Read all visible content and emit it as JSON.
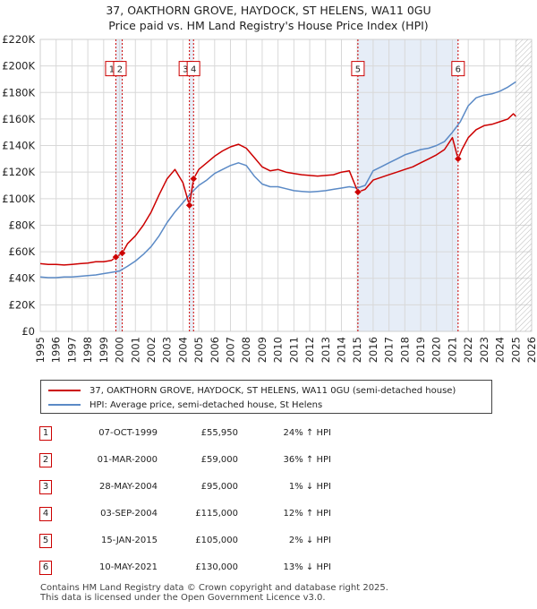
{
  "title": {
    "line1": "37, OAKTHORN GROVE, HAYDOCK, ST HELENS, WA11 0GU",
    "line2": "Price paid vs. HM Land Registry's House Price Index (HPI)"
  },
  "colors": {
    "property": "#cc0000",
    "hpi": "#5b8ac6",
    "band": "#e6edf7",
    "grid": "#d8d8d8"
  },
  "chart_data": {
    "type": "line",
    "title": "37, OAKTHORN GROVE, HAYDOCK, ST HELENS, WA11 0GU",
    "subtitle": "Price paid vs. HM Land Registry's House Price Index (HPI)",
    "xlabel": "",
    "ylabel": "",
    "xlim": [
      1995,
      2026
    ],
    "ylim": [
      0,
      220000
    ],
    "y_ticks": [
      0,
      20000,
      40000,
      60000,
      80000,
      100000,
      120000,
      140000,
      160000,
      180000,
      200000,
      220000
    ],
    "y_tick_labels": [
      "£0",
      "£20K",
      "£40K",
      "£60K",
      "£80K",
      "£100K",
      "£120K",
      "£140K",
      "£160K",
      "£180K",
      "£200K",
      "£220K"
    ],
    "x_ticks": [
      1995,
      1996,
      1997,
      1998,
      1999,
      2000,
      2001,
      2002,
      2003,
      2004,
      2005,
      2006,
      2007,
      2008,
      2009,
      2010,
      2011,
      2012,
      2013,
      2014,
      2015,
      2016,
      2017,
      2018,
      2019,
      2020,
      2021,
      2022,
      2023,
      2024,
      2025,
      2026
    ],
    "x_tick_labels": [
      "1995",
      "1996",
      "1997",
      "1998",
      "1999",
      "2000",
      "2001",
      "2002",
      "2003",
      "2004",
      "2005",
      "2006",
      "2007",
      "2008",
      "2009",
      "2010",
      "2011",
      "2012",
      "2013",
      "2014",
      "2015",
      "2016",
      "2017",
      "2018",
      "2019",
      "2020",
      "2021",
      "2022",
      "2023",
      "2024",
      "2025",
      "2026"
    ],
    "grid": true,
    "legend_position": "below",
    "shaded_ranges": [
      [
        1999.77,
        2000.17
      ],
      [
        2004.41,
        2004.67
      ],
      [
        2015.04,
        2021.36
      ]
    ],
    "hatched_from": 2025.0,
    "series": [
      {
        "name": "37, OAKTHORN GROVE, HAYDOCK, ST HELENS, WA11 0GU (semi-detached house)",
        "x": [
          1995.0,
          1995.5,
          1996.0,
          1996.5,
          1997.0,
          1997.5,
          1998.0,
          1998.5,
          1999.0,
          1999.5,
          1999.77,
          2000.17,
          2000.5,
          2001.0,
          2001.5,
          2002.0,
          2002.5,
          2003.0,
          2003.5,
          2004.0,
          2004.41,
          2004.67,
          2005.0,
          2005.5,
          2006.0,
          2006.5,
          2007.0,
          2007.5,
          2008.0,
          2008.5,
          2009.0,
          2009.5,
          2010.0,
          2010.5,
          2011.0,
          2011.5,
          2012.0,
          2012.5,
          2013.0,
          2013.5,
          2014.0,
          2014.5,
          2015.04,
          2015.5,
          2016.0,
          2016.5,
          2017.0,
          2017.5,
          2018.0,
          2018.5,
          2019.0,
          2019.5,
          2020.0,
          2020.5,
          2021.0,
          2021.36,
          2021.6,
          2022.0,
          2022.5,
          2023.0,
          2023.5,
          2024.0,
          2024.5,
          2024.85,
          2025.0
        ],
        "values": [
          51000,
          50500,
          50500,
          50000,
          50500,
          51000,
          51500,
          52500,
          52500,
          53500,
          55950,
          59000,
          66000,
          72000,
          80000,
          90000,
          103000,
          115000,
          122000,
          112000,
          95000,
          115000,
          122000,
          127000,
          132000,
          136000,
          139000,
          141000,
          138000,
          131000,
          124000,
          121000,
          122000,
          120000,
          119000,
          118000,
          117500,
          117000,
          117500,
          118000,
          120000,
          121000,
          105000,
          107000,
          114000,
          116000,
          118000,
          120000,
          122000,
          124000,
          127000,
          130000,
          133000,
          137000,
          146000,
          130000,
          137000,
          146000,
          152000,
          155000,
          156000,
          158000,
          160000,
          164000,
          162000
        ]
      },
      {
        "name": "HPI: Average price, semi-detached house, St Helens",
        "x": [
          1995.0,
          1995.5,
          1996.0,
          1996.5,
          1997.0,
          1997.5,
          1998.0,
          1998.5,
          1999.0,
          1999.5,
          2000.0,
          2000.5,
          2001.0,
          2001.5,
          2002.0,
          2002.5,
          2003.0,
          2003.5,
          2004.0,
          2004.5,
          2005.0,
          2005.5,
          2006.0,
          2006.5,
          2007.0,
          2007.5,
          2008.0,
          2008.5,
          2009.0,
          2009.5,
          2010.0,
          2010.5,
          2011.0,
          2011.5,
          2012.0,
          2012.5,
          2013.0,
          2013.5,
          2014.0,
          2014.5,
          2015.0,
          2015.5,
          2016.0,
          2016.5,
          2017.0,
          2017.5,
          2018.0,
          2018.5,
          2019.0,
          2019.5,
          2020.0,
          2020.5,
          2021.0,
          2021.5,
          2022.0,
          2022.5,
          2023.0,
          2023.5,
          2024.0,
          2024.5,
          2025.0
        ],
        "values": [
          41000,
          40500,
          40500,
          41000,
          41000,
          41500,
          42000,
          42500,
          43500,
          44500,
          45500,
          49000,
          53000,
          58000,
          64000,
          72000,
          82000,
          90000,
          97000,
          104000,
          110000,
          114000,
          119000,
          122000,
          125000,
          127000,
          125000,
          117000,
          111000,
          109000,
          109000,
          107500,
          106000,
          105500,
          105000,
          105500,
          106000,
          107000,
          108000,
          109000,
          108000,
          110000,
          121000,
          124000,
          127000,
          130000,
          133000,
          135000,
          137000,
          138000,
          140000,
          143000,
          150000,
          158000,
          170000,
          176000,
          178000,
          179000,
          181000,
          184000,
          188000
        ]
      }
    ],
    "sale_markers": [
      {
        "label": "1",
        "x": 1999.77,
        "y": 55950
      },
      {
        "label": "2",
        "x": 2000.17,
        "y": 59000
      },
      {
        "label": "3",
        "x": 2004.41,
        "y": 95000
      },
      {
        "label": "4",
        "x": 2004.67,
        "y": 115000
      },
      {
        "label": "5",
        "x": 2015.04,
        "y": 105000
      },
      {
        "label": "6",
        "x": 2021.36,
        "y": 130000
      }
    ]
  },
  "legend": {
    "property_label": "37, OAKTHORN GROVE, HAYDOCK, ST HELENS, WA11 0GU (semi-detached house)",
    "hpi_label": "HPI: Average price, semi-detached house, St Helens"
  },
  "sales": [
    {
      "num": "1",
      "date": "07-OCT-1999",
      "price": "£55,950",
      "hpi": "24% ↑ HPI"
    },
    {
      "num": "2",
      "date": "01-MAR-2000",
      "price": "£59,000",
      "hpi": "36% ↑ HPI"
    },
    {
      "num": "3",
      "date": "28-MAY-2004",
      "price": "£95,000",
      "hpi": "1% ↓ HPI"
    },
    {
      "num": "4",
      "date": "03-SEP-2004",
      "price": "£115,000",
      "hpi": "12% ↑ HPI"
    },
    {
      "num": "5",
      "date": "15-JAN-2015",
      "price": "£105,000",
      "hpi": "2% ↓ HPI"
    },
    {
      "num": "6",
      "date": "10-MAY-2021",
      "price": "£130,000",
      "hpi": "13% ↓ HPI"
    }
  ],
  "footer": {
    "line1": "Contains HM Land Registry data © Crown copyright and database right 2025.",
    "line2": "This data is licensed under the Open Government Licence v3.0."
  }
}
